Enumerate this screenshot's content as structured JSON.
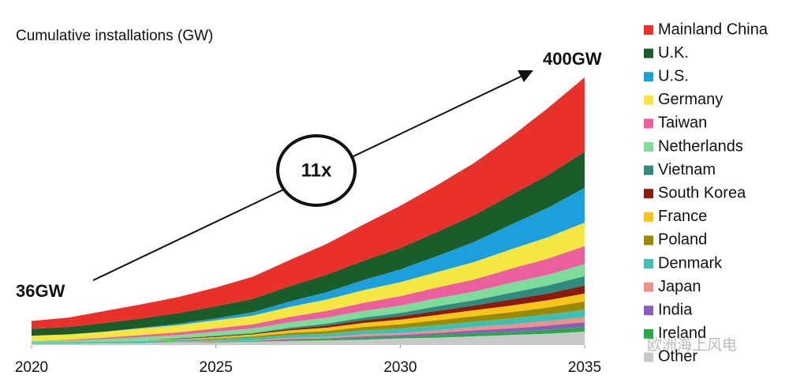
{
  "chart_data": {
    "type": "stacked_area",
    "title": "Cumulative installations (GW)",
    "annotations": {
      "start": "36GW",
      "end": "400GW",
      "growth": "11x"
    },
    "watermark": "欧洲海上风电",
    "x": [
      2020,
      2021,
      2022,
      2023,
      2024,
      2025,
      2026,
      2027,
      2028,
      2029,
      2030,
      2031,
      2032,
      2033,
      2034,
      2035
    ],
    "xlim": [
      2020,
      2035
    ],
    "xticks": [
      2020,
      2025,
      2030,
      2035
    ],
    "ylim": [
      0,
      400
    ],
    "series": [
      {
        "name": "Mainland China",
        "color": "#e8312a",
        "values": [
          12,
          14,
          18,
          21,
          24,
          28,
          33,
          39,
          46,
          54,
          63,
          70,
          78,
          87,
          100,
          111
        ]
      },
      {
        "name": "U.K.",
        "color": "#1a5c2a",
        "values": [
          10,
          11,
          13,
          14,
          16,
          18,
          20,
          23,
          26,
          29,
          32,
          36,
          40,
          44,
          49,
          54
        ]
      },
      {
        "name": "U.S.",
        "color": "#1ba0dc",
        "values": [
          0,
          0,
          0,
          1,
          2,
          3,
          5,
          8,
          11,
          15,
          19,
          24,
          30,
          37,
          44,
          52
        ]
      },
      {
        "name": "Germany",
        "color": "#f5e642",
        "values": [
          8,
          8,
          9,
          10,
          11,
          12,
          13,
          15,
          17,
          19,
          21,
          23,
          26,
          29,
          32,
          35
        ]
      },
      {
        "name": "Taiwan",
        "color": "#ec5f9d",
        "values": [
          0,
          1,
          2,
          3,
          4,
          5,
          6,
          8,
          10,
          12,
          14,
          16,
          18,
          21,
          24,
          27
        ]
      },
      {
        "name": "Netherlands",
        "color": "#7ddc9a",
        "values": [
          2,
          3,
          4,
          5,
          5,
          6,
          7,
          8,
          9,
          10,
          11,
          12,
          13,
          15,
          16,
          18
        ]
      },
      {
        "name": "Vietnam",
        "color": "#2e8b7e",
        "values": [
          0,
          0,
          0,
          0,
          0,
          1,
          1,
          2,
          3,
          4,
          5,
          7,
          8,
          10,
          12,
          14
        ]
      },
      {
        "name": "South Korea",
        "color": "#8b1a10",
        "values": [
          0,
          0,
          0,
          0,
          1,
          1,
          1,
          2,
          3,
          4,
          5,
          6,
          7,
          9,
          10,
          12
        ]
      },
      {
        "name": "France",
        "color": "#f6c518",
        "values": [
          0,
          0,
          0,
          1,
          1,
          2,
          3,
          4,
          5,
          6,
          7,
          8,
          9,
          10,
          11,
          12
        ]
      },
      {
        "name": "Poland",
        "color": "#9a8a00",
        "values": [
          0,
          0,
          0,
          0,
          0,
          1,
          2,
          3,
          4,
          5,
          6,
          7,
          8,
          9,
          10,
          12
        ]
      },
      {
        "name": "Denmark",
        "color": "#3fbfb0",
        "values": [
          2,
          2,
          2,
          3,
          3,
          3,
          4,
          4,
          5,
          6,
          7,
          8,
          8,
          9,
          10,
          11
        ]
      },
      {
        "name": "Japan",
        "color": "#f0908a",
        "values": [
          0,
          0,
          0,
          0,
          1,
          1,
          1,
          2,
          2,
          3,
          3,
          4,
          5,
          6,
          7,
          8
        ]
      },
      {
        "name": "India",
        "color": "#8a5cc0",
        "values": [
          0,
          0,
          0,
          0,
          0,
          0,
          0,
          1,
          1,
          2,
          2,
          3,
          4,
          5,
          6,
          7
        ]
      },
      {
        "name": "Ireland",
        "color": "#2aa84a",
        "values": [
          0,
          0,
          0,
          0,
          0,
          1,
          1,
          2,
          2,
          3,
          3,
          4,
          5,
          5,
          6,
          7
        ]
      },
      {
        "name": "Other",
        "color": "#c8c8c8",
        "values": [
          2,
          2,
          3,
          3,
          4,
          4,
          5,
          6,
          7,
          8,
          10,
          11,
          13,
          15,
          17,
          20
        ]
      }
    ]
  }
}
